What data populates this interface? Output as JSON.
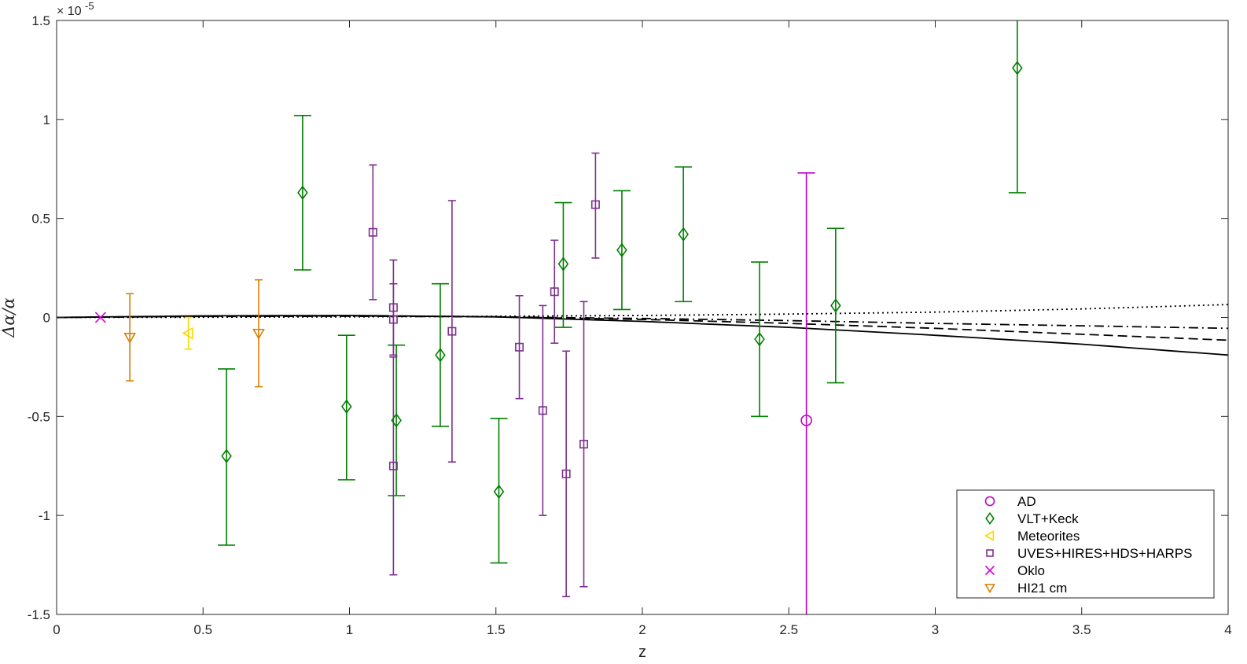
{
  "chart_data": {
    "type": "scatter",
    "title": "",
    "xlabel": "z",
    "ylabel": "Δα/α",
    "y_exponent_base": "× 10",
    "y_exponent_power": "-5",
    "xlim": [
      0,
      4
    ],
    "ylim": [
      -1.5,
      1.5
    ],
    "x_ticks": [
      0,
      0.5,
      1,
      1.5,
      2,
      2.5,
      3,
      3.5,
      4
    ],
    "x_tick_labels": [
      "0",
      "0.5",
      "1",
      "1.5",
      "2",
      "2.5",
      "3",
      "3.5",
      "4"
    ],
    "y_ticks": [
      -1.5,
      -1,
      -0.5,
      0,
      0.5,
      1,
      1.5
    ],
    "y_tick_labels": [
      "-1.5",
      "-1",
      "-0.5",
      "0",
      "0.5",
      "1",
      "1.5"
    ],
    "grid": false,
    "legend_position": "bottom-right",
    "series": [
      {
        "name": "AD",
        "marker": "circle",
        "color": "#C000C0",
        "points": [
          {
            "x": 2.56,
            "y": -0.52,
            "lo": -1.6,
            "hi": 0.73
          }
        ]
      },
      {
        "name": "VLT+Keck",
        "marker": "diamond",
        "color": "#008000",
        "points": [
          {
            "x": 0.58,
            "y": -0.7,
            "lo": -1.15,
            "hi": -0.26
          },
          {
            "x": 0.84,
            "y": 0.63,
            "lo": 0.24,
            "hi": 1.02
          },
          {
            "x": 0.99,
            "y": -0.45,
            "lo": -0.82,
            "hi": -0.09
          },
          {
            "x": 1.16,
            "y": -0.52,
            "lo": -0.9,
            "hi": -0.14
          },
          {
            "x": 1.31,
            "y": -0.19,
            "lo": -0.55,
            "hi": 0.17
          },
          {
            "x": 1.51,
            "y": -0.88,
            "lo": -1.24,
            "hi": -0.51
          },
          {
            "x": 1.73,
            "y": 0.27,
            "lo": -0.05,
            "hi": 0.58
          },
          {
            "x": 1.93,
            "y": 0.34,
            "lo": 0.04,
            "hi": 0.64
          },
          {
            "x": 2.14,
            "y": 0.42,
            "lo": 0.08,
            "hi": 0.76
          },
          {
            "x": 2.4,
            "y": -0.11,
            "lo": -0.5,
            "hi": 0.28
          },
          {
            "x": 2.66,
            "y": 0.06,
            "lo": -0.33,
            "hi": 0.45
          },
          {
            "x": 3.28,
            "y": 1.26,
            "lo": 0.63,
            "hi": 1.55
          }
        ]
      },
      {
        "name": "Meteorites",
        "marker": "triangle-left",
        "color": "#FFD700",
        "points": [
          {
            "x": 0.45,
            "y": -0.08,
            "lo": -0.16,
            "hi": 0.0
          }
        ]
      },
      {
        "name": "UVES+HIRES+HDS+HARPS",
        "marker": "square",
        "color": "#7E2F8E",
        "points": [
          {
            "x": 1.08,
            "y": 0.43,
            "lo": 0.09,
            "hi": 0.77
          },
          {
            "x": 1.15,
            "y": 0.05,
            "lo": -0.19,
            "hi": 0.29
          },
          {
            "x": 1.15,
            "y": -0.01,
            "lo": -0.19,
            "hi": 0.17
          },
          {
            "x": 1.15,
            "y": -0.75,
            "lo": -1.3,
            "hi": -0.2
          },
          {
            "x": 1.35,
            "y": -0.07,
            "lo": -0.73,
            "hi": 0.59
          },
          {
            "x": 1.58,
            "y": -0.15,
            "lo": -0.41,
            "hi": 0.11
          },
          {
            "x": 1.66,
            "y": -0.47,
            "lo": -1.0,
            "hi": 0.06
          },
          {
            "x": 1.7,
            "y": 0.13,
            "lo": -0.13,
            "hi": 0.39
          },
          {
            "x": 1.74,
            "y": -0.79,
            "lo": -1.41,
            "hi": -0.17
          },
          {
            "x": 1.8,
            "y": -0.64,
            "lo": -1.36,
            "hi": 0.08
          },
          {
            "x": 1.84,
            "y": 0.57,
            "lo": 0.3,
            "hi": 0.83
          }
        ]
      },
      {
        "name": "Oklo",
        "marker": "x",
        "color": "#E000E0",
        "points": [
          {
            "x": 0.15,
            "y": 0.0
          }
        ]
      },
      {
        "name": "HI21 cm",
        "marker": "triangle-down",
        "color": "#D97F00",
        "points": [
          {
            "x": 0.25,
            "y": -0.1,
            "lo": -0.32,
            "hi": 0.12
          },
          {
            "x": 0.69,
            "y": -0.08,
            "lo": -0.35,
            "hi": 0.19
          }
        ]
      }
    ],
    "curves": [
      {
        "style": "solid",
        "x": [
          0,
          0.5,
          1,
          1.5,
          2,
          2.5,
          3,
          3.5,
          4
        ],
        "y": [
          0,
          0.008,
          0.01,
          0.003,
          -0.02,
          -0.05,
          -0.09,
          -0.135,
          -0.19
        ]
      },
      {
        "style": "dashed",
        "x": [
          0,
          0.5,
          1,
          1.5,
          2,
          2.5,
          3,
          3.5,
          4
        ],
        "y": [
          0,
          0.006,
          0.008,
          0.003,
          -0.01,
          -0.03,
          -0.055,
          -0.085,
          -0.115
        ]
      },
      {
        "style": "dashdot",
        "x": [
          0,
          0.5,
          1,
          1.5,
          2,
          2.5,
          3,
          3.5,
          4
        ],
        "y": [
          0,
          0.005,
          0.006,
          0.003,
          -0.005,
          -0.016,
          -0.03,
          -0.042,
          -0.055
        ]
      },
      {
        "style": "dotted",
        "x": [
          0,
          0.5,
          1,
          1.5,
          2,
          2.5,
          3,
          3.5,
          4
        ],
        "y": [
          0,
          0.001,
          0.003,
          0.006,
          0.01,
          0.017,
          0.027,
          0.043,
          0.065
        ]
      }
    ]
  }
}
